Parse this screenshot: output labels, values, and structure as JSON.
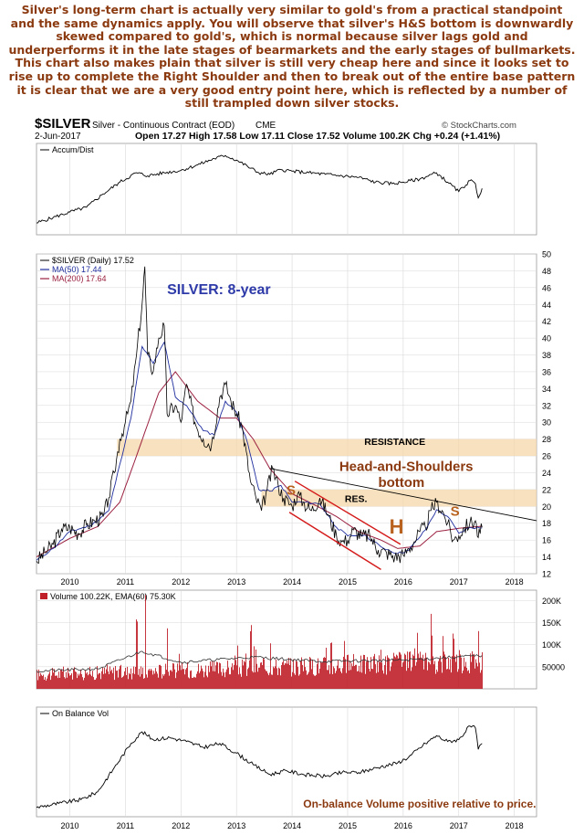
{
  "commentary_lines": [
    "Silver's long-term chart is actually very similar to gold's from a practical standpoint",
    "and the same dynamics apply. You will observe that silver's H&S bottom is downwardly",
    "skewed compared to gold's, which is normal because silver lags gold and",
    "underperforms it in the late stages of bearmarkets and the early stages of bullmarkets.",
    "This chart also makes plain that silver is still very cheap here and since it looks set to",
    "rise up to complete the Right Shoulder and then to break out of the entire base pattern",
    "it is clear that we are a very good entry point here, which is reflected by a number of",
    "still trampled down silver stocks."
  ],
  "header": {
    "symbol": "$SILVER",
    "name": "Silver - Continuous Contract (EOD)",
    "exchange": "CME",
    "date": "2-Jun-2017",
    "quote": "Open 17.27  High 17.58  Low 17.11  Close 17.52  Volume 100.2K  Chg +0.24 (+1.41%)",
    "watermark": "© StockCharts.com"
  },
  "panels": {
    "accum_label": "Accum/Dist",
    "price_label": "$SILVER (Daily) 17.52",
    "ma50_label": "MA(50) 17.44",
    "ma200_label": "MA(200) 17.64",
    "volume_label": "Volume 100.22K, EMA(60) 75.30K",
    "obv_label": "On Balance Vol"
  },
  "annotations": {
    "title": "SILVER: 8-year",
    "resistance": "RESISTANCE",
    "hs_line1": "Head-and-Shoulders",
    "hs_line2": "bottom",
    "res": "RES.",
    "left_shoulder": "S",
    "head": "H",
    "right_shoulder": "S",
    "obv_note": "On-balance Volume positive relative to price."
  },
  "colors": {
    "text_brown": "#8b3a10",
    "title_blue": "#2d3aa8",
    "price_line": "#000000",
    "ma50": "#1f2e9e",
    "ma200": "#9b2140",
    "band": "#f5d7a8",
    "channel": "#d41a1a",
    "volume_bar": "#c0202a",
    "ema_line": "#333333",
    "grid": "#d8d8d8",
    "hs_letter": "#b9621f"
  },
  "chart_data": {
    "type": "line",
    "x_axis": {
      "ticks": [
        "2010",
        "2011",
        "2012",
        "2013",
        "2014",
        "2015",
        "2016",
        "2017",
        "2018"
      ],
      "range": [
        2009.4,
        2018.4
      ]
    },
    "price": {
      "name": "$SILVER (Daily)",
      "last": 17.52,
      "ylim": [
        12,
        50
      ],
      "ticks": [
        12,
        14,
        16,
        18,
        20,
        22,
        24,
        26,
        28,
        30,
        32,
        34,
        36,
        38,
        40,
        42,
        44,
        46,
        48,
        50
      ],
      "points": [
        [
          2009.4,
          13.5
        ],
        [
          2009.55,
          14.5
        ],
        [
          2009.7,
          15.5
        ],
        [
          2009.85,
          17.3
        ],
        [
          2010.0,
          17.5
        ],
        [
          2010.15,
          16.8
        ],
        [
          2010.3,
          17.8
        ],
        [
          2010.45,
          18.3
        ],
        [
          2010.6,
          18.8
        ],
        [
          2010.7,
          21.0
        ],
        [
          2010.8,
          24.0
        ],
        [
          2010.9,
          28.0
        ],
        [
          2011.0,
          30.0
        ],
        [
          2011.1,
          32.5
        ],
        [
          2011.2,
          38.0
        ],
        [
          2011.3,
          44.0
        ],
        [
          2011.35,
          48.5
        ],
        [
          2011.4,
          38.0
        ],
        [
          2011.5,
          36.0
        ],
        [
          2011.6,
          40.0
        ],
        [
          2011.7,
          41.5
        ],
        [
          2011.75,
          31.0
        ],
        [
          2011.9,
          32.0
        ],
        [
          2012.0,
          30.0
        ],
        [
          2012.1,
          34.5
        ],
        [
          2012.25,
          30.0
        ],
        [
          2012.4,
          28.0
        ],
        [
          2012.55,
          27.3
        ],
        [
          2012.7,
          33.0
        ],
        [
          2012.8,
          34.5
        ],
        [
          2012.9,
          32.5
        ],
        [
          2013.0,
          31.0
        ],
        [
          2013.1,
          29.5
        ],
        [
          2013.25,
          23.0
        ],
        [
          2013.35,
          21.0
        ],
        [
          2013.45,
          19.5
        ],
        [
          2013.55,
          22.0
        ],
        [
          2013.65,
          24.5
        ],
        [
          2013.75,
          22.5
        ],
        [
          2013.85,
          21.0
        ],
        [
          2014.0,
          20.0
        ],
        [
          2014.1,
          21.5
        ],
        [
          2014.2,
          20.5
        ],
        [
          2014.35,
          19.5
        ],
        [
          2014.5,
          21.0
        ],
        [
          2014.65,
          19.0
        ],
        [
          2014.8,
          16.5
        ],
        [
          2014.9,
          15.8
        ],
        [
          2015.0,
          16.0
        ],
        [
          2015.1,
          17.2
        ],
        [
          2015.25,
          16.5
        ],
        [
          2015.4,
          16.5
        ],
        [
          2015.55,
          14.8
        ],
        [
          2015.7,
          14.5
        ],
        [
          2015.85,
          14.0
        ],
        [
          2016.0,
          14.2
        ],
        [
          2016.1,
          15.0
        ],
        [
          2016.2,
          15.8
        ],
        [
          2016.3,
          17.0
        ],
        [
          2016.4,
          17.5
        ],
        [
          2016.5,
          19.5
        ],
        [
          2016.6,
          20.5
        ],
        [
          2016.7,
          19.5
        ],
        [
          2016.8,
          18.0
        ],
        [
          2016.9,
          16.0
        ],
        [
          2017.0,
          16.5
        ],
        [
          2017.1,
          17.5
        ],
        [
          2017.2,
          18.0
        ],
        [
          2017.3,
          18.3
        ],
        [
          2017.35,
          16.3
        ],
        [
          2017.42,
          17.52
        ]
      ]
    },
    "ma50": {
      "name": "MA(50)",
      "last": 17.44,
      "points": [
        [
          2009.4,
          13.6
        ],
        [
          2009.7,
          15.0
        ],
        [
          2010.0,
          17.0
        ],
        [
          2010.4,
          17.8
        ],
        [
          2010.7,
          19.5
        ],
        [
          2010.9,
          25.0
        ],
        [
          2011.1,
          30.5
        ],
        [
          2011.3,
          39.0
        ],
        [
          2011.5,
          37.0
        ],
        [
          2011.7,
          39.5
        ],
        [
          2011.9,
          33.0
        ],
        [
          2012.1,
          32.0
        ],
        [
          2012.4,
          29.0
        ],
        [
          2012.6,
          28.5
        ],
        [
          2012.8,
          32.5
        ],
        [
          2013.0,
          31.2
        ],
        [
          2013.2,
          27.5
        ],
        [
          2013.4,
          22.0
        ],
        [
          2013.6,
          21.8
        ],
        [
          2013.8,
          22.5
        ],
        [
          2014.0,
          20.5
        ],
        [
          2014.2,
          20.5
        ],
        [
          2014.5,
          20.3
        ],
        [
          2014.8,
          17.5
        ],
        [
          2015.0,
          16.5
        ],
        [
          2015.3,
          16.6
        ],
        [
          2015.6,
          15.2
        ],
        [
          2015.9,
          14.4
        ],
        [
          2016.1,
          14.8
        ],
        [
          2016.4,
          17.2
        ],
        [
          2016.6,
          19.6
        ],
        [
          2016.8,
          18.8
        ],
        [
          2017.0,
          16.8
        ],
        [
          2017.2,
          17.5
        ],
        [
          2017.42,
          17.44
        ]
      ]
    },
    "ma200": {
      "name": "MA(200)",
      "last": 17.64,
      "points": [
        [
          2009.4,
          14.0
        ],
        [
          2010.0,
          16.2
        ],
        [
          2010.5,
          17.6
        ],
        [
          2010.9,
          20.5
        ],
        [
          2011.2,
          26.0
        ],
        [
          2011.6,
          33.5
        ],
        [
          2011.9,
          36.0
        ],
        [
          2012.3,
          32.5
        ],
        [
          2012.7,
          30.5
        ],
        [
          2013.0,
          30.5
        ],
        [
          2013.3,
          28.0
        ],
        [
          2013.6,
          24.5
        ],
        [
          2014.0,
          21.5
        ],
        [
          2014.4,
          20.2
        ],
        [
          2014.8,
          18.8
        ],
        [
          2015.2,
          17.0
        ],
        [
          2015.6,
          16.0
        ],
        [
          2015.9,
          15.0
        ],
        [
          2016.3,
          15.3
        ],
        [
          2016.6,
          17.0
        ],
        [
          2017.0,
          17.4
        ],
        [
          2017.42,
          17.64
        ]
      ]
    },
    "annotation_levels": {
      "resistance_band": [
        26,
        28
      ],
      "res_band": [
        20,
        22
      ],
      "downtrend_line": [
        [
          2013.6,
          24.5
        ],
        [
          2018.4,
          18.3
        ]
      ],
      "channel_upper": [
        [
          2014.05,
          23.0
        ],
        [
          2015.95,
          15.5
        ]
      ],
      "channel_lower": [
        [
          2013.95,
          19.3
        ],
        [
          2015.6,
          12.5
        ]
      ]
    },
    "volume": {
      "name": "Volume",
      "last": "100.22K",
      "ema_name": "EMA(60)",
      "ema_last": "75.30K",
      "ylim": [
        0,
        215000
      ],
      "ticks": [
        "50000",
        "100K",
        "150K",
        "200K"
      ],
      "tick_values": [
        50000,
        100000,
        150000,
        200000
      ],
      "spikes": [
        [
          2011.35,
          215000
        ],
        [
          2011.2,
          165000
        ],
        [
          2011.75,
          150000
        ],
        [
          2013.25,
          150000
        ],
        [
          2013.6,
          120000
        ],
        [
          2014.7,
          110000
        ],
        [
          2016.5,
          125000
        ],
        [
          2016.9,
          130000
        ],
        [
          2017.35,
          138000
        ]
      ]
    },
    "accum_dist": {
      "name": "Accum/Dist",
      "ylim": [
        0,
        100
      ],
      "points": [
        [
          2009.4,
          8
        ],
        [
          2009.7,
          15
        ],
        [
          2010.0,
          22
        ],
        [
          2010.3,
          28
        ],
        [
          2010.6,
          45
        ],
        [
          2010.9,
          60
        ],
        [
          2011.2,
          72
        ],
        [
          2011.4,
          68
        ],
        [
          2011.7,
          72
        ],
        [
          2012.0,
          75
        ],
        [
          2012.3,
          82
        ],
        [
          2012.6,
          90
        ],
        [
          2012.8,
          94
        ],
        [
          2013.0,
          88
        ],
        [
          2013.2,
          80
        ],
        [
          2013.4,
          72
        ],
        [
          2013.6,
          70
        ],
        [
          2013.8,
          76
        ],
        [
          2014.0,
          74
        ],
        [
          2014.3,
          72
        ],
        [
          2014.6,
          70
        ],
        [
          2014.9,
          68
        ],
        [
          2015.2,
          66
        ],
        [
          2015.5,
          60
        ],
        [
          2015.8,
          58
        ],
        [
          2016.0,
          60
        ],
        [
          2016.3,
          64
        ],
        [
          2016.6,
          72
        ],
        [
          2016.8,
          60
        ],
        [
          2017.0,
          48
        ],
        [
          2017.2,
          62
        ],
        [
          2017.3,
          58
        ],
        [
          2017.35,
          40
        ],
        [
          2017.42,
          52
        ]
      ]
    },
    "obv": {
      "name": "On Balance Vol",
      "ylim": [
        0,
        100
      ],
      "points": [
        [
          2009.4,
          4
        ],
        [
          2009.8,
          8
        ],
        [
          2010.2,
          12
        ],
        [
          2010.5,
          20
        ],
        [
          2010.8,
          45
        ],
        [
          2011.1,
          70
        ],
        [
          2011.3,
          82
        ],
        [
          2011.5,
          74
        ],
        [
          2011.8,
          76
        ],
        [
          2012.1,
          72
        ],
        [
          2012.4,
          66
        ],
        [
          2012.7,
          70
        ],
        [
          2013.0,
          60
        ],
        [
          2013.3,
          48
        ],
        [
          2013.6,
          38
        ],
        [
          2013.9,
          42
        ],
        [
          2014.2,
          38
        ],
        [
          2014.6,
          36
        ],
        [
          2014.9,
          40
        ],
        [
          2015.2,
          40
        ],
        [
          2015.6,
          46
        ],
        [
          2015.9,
          50
        ],
        [
          2016.1,
          56
        ],
        [
          2016.4,
          70
        ],
        [
          2016.6,
          78
        ],
        [
          2016.8,
          72
        ],
        [
          2017.0,
          74
        ],
        [
          2017.2,
          88
        ],
        [
          2017.3,
          86
        ],
        [
          2017.35,
          64
        ],
        [
          2017.42,
          70
        ]
      ]
    }
  }
}
